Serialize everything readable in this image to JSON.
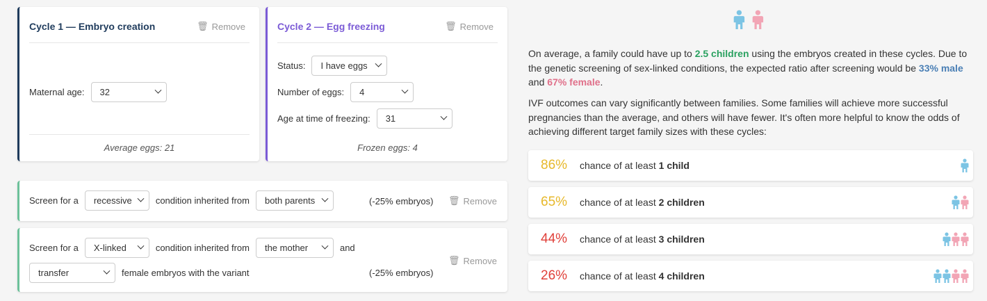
{
  "cycles": [
    {
      "title": "Cycle 1 — Embryo creation",
      "remove": "Remove",
      "fields": [
        {
          "label": "Maternal age:",
          "value": "32"
        }
      ],
      "footer": "Average eggs: 21"
    },
    {
      "title": "Cycle 2 — Egg freezing",
      "remove": "Remove",
      "fields": [
        {
          "label": "Status:",
          "value": "I have eggs"
        },
        {
          "label": "Number of eggs:",
          "value": "4"
        },
        {
          "label": "Age at time of freezing:",
          "value": "31"
        }
      ],
      "footer": "Frozen eggs: 4"
    }
  ],
  "screens": [
    {
      "lead": "Screen for a",
      "type": "recessive",
      "middle": "condition inherited from",
      "parent": "both parents",
      "effect": "(-25% embryos)",
      "remove": "Remove"
    },
    {
      "lead": "Screen for a",
      "type": "X-linked",
      "middle": "condition inherited from",
      "parent": "the mother",
      "and": "and",
      "action": "transfer",
      "tail": "female embryos with the variant",
      "effect": "(-25% embryos)",
      "remove": "Remove"
    }
  ],
  "summary": {
    "p1": [
      "On average, a family could have up to ",
      "2.5 children",
      " using the embryos created in these cycles. Due to the genetic screening of sex-linked conditions, the expected ratio after screening would be ",
      "33% male",
      " and ",
      "67% female",
      "."
    ],
    "p2": "IVF outcomes can vary significantly between families. Some families will achieve more successful pregnancies than the average, and others will have fewer. It's often more helpful to know the odds of achieving different target family sizes with these cycles:"
  },
  "odds": [
    {
      "percent": "86%",
      "text": "chance of at least",
      "target": "1 child"
    },
    {
      "percent": "65%",
      "text": "chance of at least",
      "target": "2 children"
    },
    {
      "percent": "44%",
      "text": "chance of at least",
      "target": "3 children"
    },
    {
      "percent": "26%",
      "text": "chance of at least",
      "target": "4 children"
    }
  ]
}
